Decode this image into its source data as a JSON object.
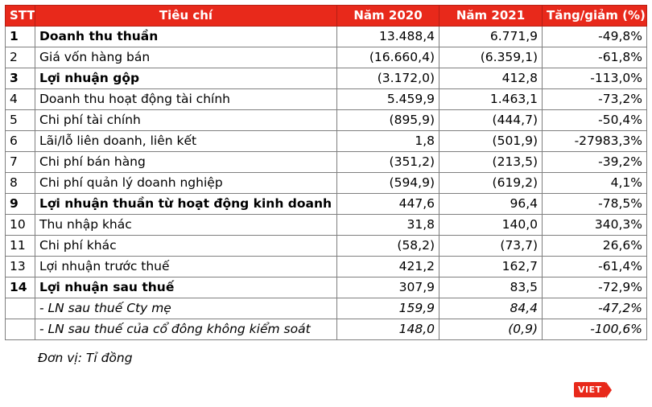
{
  "table": {
    "headers": [
      "STT",
      "Tiêu chí",
      "Năm 2020",
      "Năm 2021",
      "Tăng/giảm (%)"
    ],
    "rows": [
      {
        "stt": "1",
        "label": "Doanh thu thuần",
        "y2020": "13.488,4",
        "y2021": "6.771,9",
        "change": "-49,8%",
        "style": "bold"
      },
      {
        "stt": "2",
        "label": "Giá vốn hàng bán",
        "y2020": "(16.660,4)",
        "y2021": "(6.359,1)",
        "change": "-61,8%",
        "style": "normal"
      },
      {
        "stt": "3",
        "label": "Lợi nhuận gộp",
        "y2020": "(3.172,0)",
        "y2021": "412,8",
        "change": "-113,0%",
        "style": "bold"
      },
      {
        "stt": "4",
        "label": "Doanh thu hoạt động tài chính",
        "y2020": "5.459,9",
        "y2021": "1.463,1",
        "change": "-73,2%",
        "style": "normal"
      },
      {
        "stt": "5",
        "label": "Chi phí tài chính",
        "y2020": "(895,9)",
        "y2021": "(444,7)",
        "change": "-50,4%",
        "style": "normal"
      },
      {
        "stt": "6",
        "label": "Lãi/lỗ liên doanh, liên kết",
        "y2020": "1,8",
        "y2021": "(501,9)",
        "change": "-27983,3%",
        "style": "normal"
      },
      {
        "stt": "7",
        "label": "Chi phí bán hàng",
        "y2020": "(351,2)",
        "y2021": "(213,5)",
        "change": "-39,2%",
        "style": "normal"
      },
      {
        "stt": "8",
        "label": "Chi phí quản lý doanh nghiệp",
        "y2020": "(594,9)",
        "y2021": "(619,2)",
        "change": "4,1%",
        "style": "normal"
      },
      {
        "stt": "9",
        "label": "Lợi nhuận thuần từ hoạt động kinh doanh",
        "y2020": "447,6",
        "y2021": "96,4",
        "change": "-78,5%",
        "style": "bold"
      },
      {
        "stt": "10",
        "label": "Thu nhập khác",
        "y2020": "31,8",
        "y2021": "140,0",
        "change": "340,3%",
        "style": "normal"
      },
      {
        "stt": "11",
        "label": "Chi phí khác",
        "y2020": "(58,2)",
        "y2021": "(73,7)",
        "change": "26,6%",
        "style": "normal"
      },
      {
        "stt": "13",
        "label": "Lợi nhuận trước thuế",
        "y2020": "421,2",
        "y2021": "162,7",
        "change": "-61,4%",
        "style": "normal"
      },
      {
        "stt": "14",
        "label": "Lợi nhuận sau thuế",
        "y2020": "307,9",
        "y2021": "83,5",
        "change": "-72,9%",
        "style": "bold"
      },
      {
        "stt": "",
        "label": "- LN sau thuế Cty mẹ",
        "y2020": "159,9",
        "y2021": "84,4",
        "change": "-47,2%",
        "style": "italic"
      },
      {
        "stt": "",
        "label": "- LN sau thuế của cổ đông không kiểm soát",
        "y2020": "148,0",
        "y2021": "(0,9)",
        "change": "-100,6%",
        "style": "italic"
      }
    ]
  },
  "unit_note": "Đơn vị: Tỉ đồng",
  "logo_text": "VIET",
  "colors": {
    "header_bg": "#e8291b",
    "header_text": "#ffffff",
    "border": "#7f7f7f"
  }
}
